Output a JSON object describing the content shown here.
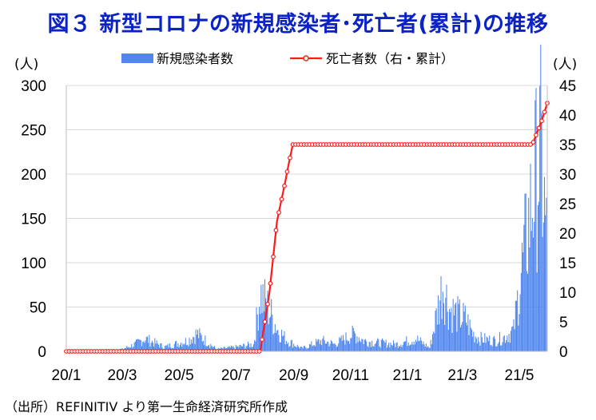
{
  "title": "図３ 新型コロナの新規感染者･死亡者(累計)の推移",
  "source": "（出所）REFINITIV より第一生命経済研究所作成",
  "chart_data": {
    "type": "bar",
    "left_unit": "(人)",
    "right_unit": "(人)",
    "ylim": [
      0,
      300
    ],
    "y2lim": [
      0,
      45
    ],
    "yticks": [
      "0",
      "50",
      "100",
      "150",
      "200",
      "250",
      "300"
    ],
    "y2ticks": [
      "0",
      "5",
      "10",
      "15",
      "20",
      "25",
      "30",
      "35",
      "40",
      "45"
    ],
    "xticks": [
      "20/1",
      "20/3",
      "20/5",
      "20/7",
      "20/9",
      "20/11",
      "21/1",
      "21/3",
      "21/5"
    ],
    "grid": true,
    "legend_position": "top",
    "series": [
      {
        "name": "新規感染者数",
        "kind": "bar",
        "color": "#4f86f0",
        "x_start": "2020-01-01",
        "x_end": "2021-05-31",
        "points": [
          [
            "2020-01-01",
            0
          ],
          [
            "2020-03-01",
            3
          ],
          [
            "2020-03-15",
            10
          ],
          [
            "2020-03-25",
            18
          ],
          [
            "2020-04-05",
            12
          ],
          [
            "2020-04-15",
            6
          ],
          [
            "2020-05-10",
            15
          ],
          [
            "2020-05-20",
            25
          ],
          [
            "2020-06-10",
            3
          ],
          [
            "2020-07-01",
            6
          ],
          [
            "2020-07-20",
            10
          ],
          [
            "2020-07-27",
            82
          ],
          [
            "2020-08-05",
            60
          ],
          [
            "2020-08-15",
            30
          ],
          [
            "2020-08-25",
            15
          ],
          [
            "2020-09-10",
            4
          ],
          [
            "2020-10-01",
            15
          ],
          [
            "2020-10-15",
            10
          ],
          [
            "2020-11-05",
            25
          ],
          [
            "2020-11-15",
            15
          ],
          [
            "2020-12-01",
            12
          ],
          [
            "2020-12-20",
            10
          ],
          [
            "2021-01-10",
            18
          ],
          [
            "2021-01-25",
            5
          ],
          [
            "2021-02-08",
            95
          ],
          [
            "2021-02-15",
            60
          ],
          [
            "2021-02-25",
            50
          ],
          [
            "2021-03-05",
            45
          ],
          [
            "2021-03-12",
            25
          ],
          [
            "2021-03-20",
            18
          ],
          [
            "2021-04-05",
            15
          ],
          [
            "2021-04-15",
            20
          ],
          [
            "2021-04-25",
            30
          ],
          [
            "2021-05-03",
            110
          ],
          [
            "2021-05-12",
            190
          ],
          [
            "2021-05-18",
            240
          ],
          [
            "2021-05-24",
            280
          ],
          [
            "2021-05-31",
            140
          ]
        ]
      },
      {
        "name": "死亡者数（右・累計）",
        "kind": "line",
        "axis": "right",
        "color": "#ff1a1a",
        "points": [
          [
            "2020-01-01",
            0
          ],
          [
            "2020-07-27",
            0
          ],
          [
            "2020-07-30",
            3
          ],
          [
            "2020-08-02",
            6
          ],
          [
            "2020-08-06",
            10
          ],
          [
            "2020-08-10",
            16
          ],
          [
            "2020-08-14",
            22
          ],
          [
            "2020-08-18",
            25
          ],
          [
            "2020-08-22",
            28
          ],
          [
            "2020-08-27",
            32
          ],
          [
            "2020-08-31",
            35
          ],
          [
            "2021-05-15",
            35
          ],
          [
            "2021-05-20",
            37
          ],
          [
            "2021-05-25",
            39
          ],
          [
            "2021-05-31",
            42
          ]
        ]
      }
    ]
  }
}
